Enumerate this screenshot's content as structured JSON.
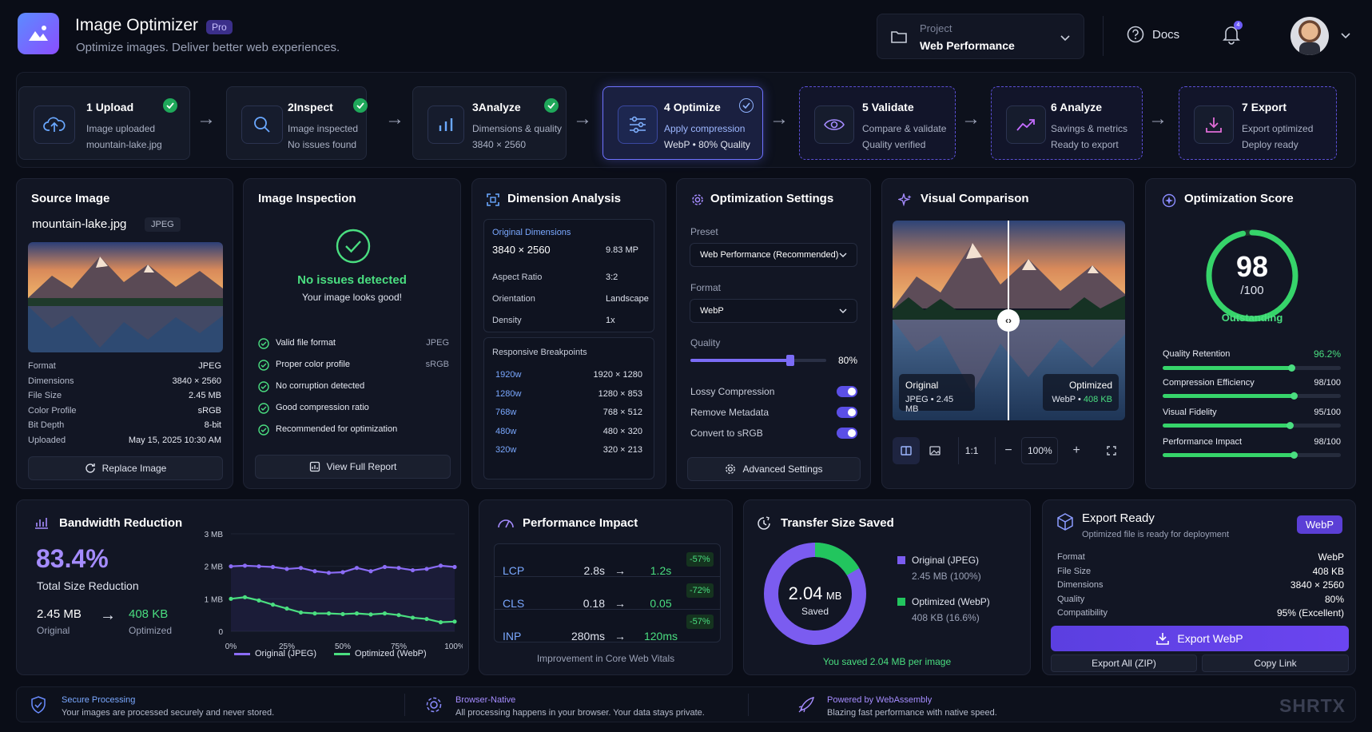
{
  "header": {
    "title": "Image Optimizer",
    "badge": "Pro",
    "subtitle": "Optimize images. Deliver better web experiences.",
    "project_label": "Project",
    "project_name": "Web Performance",
    "docs": "Docs",
    "notification_count": "4"
  },
  "steps": [
    {
      "num": "1",
      "title": "Upload",
      "line1": "Image uploaded",
      "line2": "mountain-lake.jpg"
    },
    {
      "num": "2",
      "title": "Inspect",
      "line1": "Image inspected",
      "line2": "No issues found"
    },
    {
      "num": "3",
      "title": "Analyze",
      "line1": "Dimensions & quality",
      "line2": "3840 × 2560"
    },
    {
      "num": "4",
      "title": "Optimize",
      "line1": "Apply compression",
      "line2": "WebP • 80% Quality"
    },
    {
      "num": "5",
      "title": "Validate",
      "line1": "Compare & validate",
      "line2": "Quality verified"
    },
    {
      "num": "6",
      "title": "Analyze",
      "line1": "Savings & metrics",
      "line2": "Ready to export"
    },
    {
      "num": "7",
      "title": "Export",
      "line1": "Export optimized",
      "line2": "Deploy ready"
    }
  ],
  "source": {
    "title": "Source Image",
    "filename": "mountain-lake.jpg",
    "type": "JPEG",
    "props": [
      {
        "k": "Format",
        "v": "JPEG"
      },
      {
        "k": "Dimensions",
        "v": "3840 × 2560"
      },
      {
        "k": "File Size",
        "v": "2.45 MB"
      },
      {
        "k": "Color Profile",
        "v": "sRGB"
      },
      {
        "k": "Bit Depth",
        "v": "8-bit"
      },
      {
        "k": "Uploaded",
        "v": "May 15, 2025 10:30 AM"
      }
    ],
    "replace": "Replace Image"
  },
  "inspection": {
    "title": "Image Inspection",
    "status": "No issues detected",
    "status_sub": "Your image looks good!",
    "checks": [
      {
        "label": "Valid file format",
        "value": "JPEG"
      },
      {
        "label": "Proper color profile",
        "value": "sRGB"
      },
      {
        "label": "No corruption detected",
        "value": ""
      },
      {
        "label": "Good compression ratio",
        "value": ""
      },
      {
        "label": "Recommended for optimization",
        "value": ""
      }
    ],
    "report": "View Full Report"
  },
  "dimension": {
    "title": "Dimension Analysis",
    "orig_label": "Original Dimensions",
    "orig_value": "3840 × 2560",
    "orig_mp": "9.83 MP",
    "rows": [
      {
        "k": "Aspect Ratio",
        "v": "3:2"
      },
      {
        "k": "Orientation",
        "v": "Landscape"
      },
      {
        "k": "Density",
        "v": "1x"
      }
    ],
    "bp_label": "Responsive Breakpoints",
    "breakpoints": [
      {
        "w": "1920w",
        "size": "1920 × 1280"
      },
      {
        "w": "1280w",
        "size": "1280 × 853"
      },
      {
        "w": "768w",
        "size": "768 × 512"
      },
      {
        "w": "480w",
        "size": "480 × 320"
      },
      {
        "w": "320w",
        "size": "320 × 213"
      }
    ]
  },
  "settings": {
    "title": "Optimization Settings",
    "preset_label": "Preset",
    "preset": "Web Performance (Recommended)",
    "format_label": "Format",
    "format": "WebP",
    "quality_label": "Quality",
    "quality": "80%",
    "quality_value": 80,
    "toggles": [
      "Lossy Compression",
      "Remove Metadata",
      "Convert to sRGB"
    ],
    "advanced": "Advanced Settings"
  },
  "comparison": {
    "title": "Visual Comparison",
    "left_label": "Original",
    "left_sub": "JPEG • 2.45 MB",
    "right_label": "Optimized",
    "right_sub_prefix": "WebP •",
    "right_sub_size": "408 KB",
    "zoom_ratio": "1:1",
    "zoom": "100%"
  },
  "score": {
    "title": "Optimization Score",
    "value": "98",
    "max": "/100",
    "label": "Outstanding",
    "score_value": 98,
    "metrics": [
      {
        "label": "Quality Retention",
        "value": "96.2%",
        "pct": 96.2,
        "highlight": true
      },
      {
        "label": "Compression Efficiency",
        "value": "98/100",
        "pct": 98,
        "highlight": false
      },
      {
        "label": "Visual Fidelity",
        "value": "95/100",
        "pct": 95,
        "highlight": false
      },
      {
        "label": "Performance Impact",
        "value": "98/100",
        "pct": 98,
        "highlight": false
      }
    ]
  },
  "bandwidth": {
    "title": "Bandwidth Reduction",
    "percent": "83.4%",
    "percent_label": "Total Size Reduction",
    "original": "2.45 MB",
    "original_label": "Original",
    "optimized": "408 KB",
    "optimized_label": "Optimized"
  },
  "chart_data": {
    "type": "line",
    "x_ticks": [
      "0%",
      "25%",
      "50%",
      "75%",
      "100%"
    ],
    "y_ticks": [
      "3 MB",
      "2 MB",
      "1 MB",
      "0"
    ],
    "ylim": [
      0,
      3
    ],
    "x": [
      0,
      6.25,
      12.5,
      18.75,
      25,
      31.25,
      37.5,
      43.75,
      50,
      56.25,
      62.5,
      68.75,
      75,
      81.25,
      87.5,
      93.75,
      100
    ],
    "series": [
      {
        "name": "Original (JPEG)",
        "color": "#8b6cf6",
        "values": [
          2.0,
          2.02,
          2.0,
          1.98,
          1.92,
          1.95,
          1.85,
          1.8,
          1.82,
          1.95,
          1.85,
          1.98,
          1.95,
          1.88,
          1.92,
          2.02,
          1.98
        ]
      },
      {
        "name": "Optimized (WebP)",
        "color": "#4ade80",
        "values": [
          1.0,
          1.05,
          0.95,
          0.82,
          0.7,
          0.58,
          0.55,
          0.55,
          0.53,
          0.55,
          0.52,
          0.55,
          0.5,
          0.42,
          0.38,
          0.28,
          0.3
        ]
      }
    ]
  },
  "performance": {
    "title": "Performance Impact",
    "rows": [
      {
        "metric": "LCP",
        "before": "2.8s",
        "after": "1.2s",
        "change": "-57%"
      },
      {
        "metric": "CLS",
        "before": "0.18",
        "after": "0.05",
        "change": "-72%"
      },
      {
        "metric": "INP",
        "before": "280ms",
        "after": "120ms",
        "change": "-57%"
      }
    ],
    "caption": "Improvement in Core Web Vitals"
  },
  "transfer": {
    "title": "Transfer Size Saved",
    "center_value": "2.04",
    "center_unit": "MB",
    "center_label": "Saved",
    "legend": [
      {
        "label": "Original (JPEG)",
        "value": "2.45 MB (100%)",
        "color": "#7b5cf0"
      },
      {
        "label": "Optimized (WebP)",
        "value": "408 KB (16.6%)",
        "color": "#22c55e"
      }
    ],
    "optimized_share": 16.6,
    "caption": "You saved 2.04 MB per image"
  },
  "export": {
    "title": "Export Ready",
    "subtitle": "Optimized file is ready for deployment",
    "badge": "WebP",
    "props": [
      {
        "k": "Format",
        "v": "WebP"
      },
      {
        "k": "File Size",
        "v": "408 KB"
      },
      {
        "k": "Dimensions",
        "v": "3840 × 2560"
      },
      {
        "k": "Quality",
        "v": "80%"
      },
      {
        "k": "Compatibility",
        "v": "95% (Excellent)"
      }
    ],
    "primary": "Export WebP",
    "zip": "Export All (ZIP)",
    "copy": "Copy Link"
  },
  "footer": [
    {
      "title": "Secure Processing",
      "desc": "Your images are processed securely and never stored."
    },
    {
      "title": "Browser-Native",
      "desc": "All processing happens in your browser. Your data stays private."
    },
    {
      "title": "Powered by WebAssembly",
      "desc": "Blazing fast performance with native speed."
    }
  ],
  "watermark": "SHRTX"
}
